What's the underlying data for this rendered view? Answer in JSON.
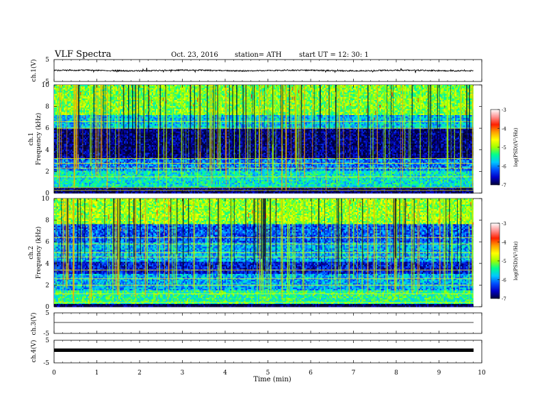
{
  "header": {
    "title": "VLF  Spectra",
    "date": "Oct. 23, 2016",
    "station": "station= ATH",
    "start_ut": "start  UT  =    12: 30: 1"
  },
  "colorbar": {
    "label": "log(PSD)(V²/Hz)",
    "ticks": [
      "-3",
      "-4",
      "-5",
      "-6",
      "-7"
    ],
    "colormap": [
      "#00003a",
      "#0000c8",
      "#0050ff",
      "#00c8ff",
      "#00ff90",
      "#a0ff00",
      "#ffff00",
      "#ffa000",
      "#ff2000",
      "#ff9090",
      "#ffffff"
    ]
  },
  "chart_data": [
    {
      "type": "line",
      "panel": "ch1-waveform",
      "ylabel": "ch.1(V)",
      "ylim": [
        -5,
        5
      ],
      "yticks": [
        "5",
        "-5"
      ],
      "x_range_min": [
        0,
        9.8
      ],
      "approx_level_v": 0.0,
      "approx_noise_v": 0.6
    },
    {
      "type": "heatmap",
      "panel": "ch1-spectrogram",
      "ylabel_line1": "ch.1",
      "ylabel_line2": "Frequency  (kHz)",
      "ylim": [
        0,
        10
      ],
      "yticks": [
        "0",
        "2",
        "4",
        "6",
        "8",
        "10"
      ],
      "x_range_min": [
        0,
        9.8
      ],
      "value_range": [
        -7,
        -3
      ],
      "bands_khz": [
        {
          "f0": 0.0,
          "f1": 0.6,
          "level": -6.9
        },
        {
          "f0": 0.6,
          "f1": 2.0,
          "level": -5.6
        },
        {
          "f0": 2.0,
          "f1": 3.2,
          "level": -6.1
        },
        {
          "f0": 3.2,
          "f1": 6.0,
          "level": -6.8
        },
        {
          "f0": 6.0,
          "f1": 7.2,
          "level": -5.8
        },
        {
          "f0": 7.2,
          "f1": 10.0,
          "level": -5.1
        }
      ],
      "lines_khz": [
        0.25,
        0.5,
        1.5,
        2.3,
        2.75,
        3.2,
        6.0,
        6.6
      ]
    },
    {
      "type": "heatmap",
      "panel": "ch2-spectrogram",
      "ylabel_line1": "ch.2",
      "ylabel_line2": "Frequency  (kHz)",
      "ylim": [
        0,
        10
      ],
      "yticks": [
        "0",
        "2",
        "4",
        "6",
        "8",
        "10"
      ],
      "x_range_min": [
        0,
        9.8
      ],
      "value_range": [
        -7,
        -3
      ],
      "bands_khz": [
        {
          "f0": 0.0,
          "f1": 0.2,
          "level": -7.0
        },
        {
          "f0": 0.2,
          "f1": 1.5,
          "level": -5.4
        },
        {
          "f0": 1.5,
          "f1": 3.0,
          "level": -5.9
        },
        {
          "f0": 3.0,
          "f1": 4.2,
          "level": -6.5
        },
        {
          "f0": 4.2,
          "f1": 6.0,
          "level": -5.9
        },
        {
          "f0": 6.0,
          "f1": 7.6,
          "level": -6.2
        },
        {
          "f0": 7.6,
          "f1": 10.0,
          "level": -5.0
        }
      ],
      "lines_khz": [
        0.4,
        1.2,
        2.0,
        2.6,
        3.4,
        4.6,
        5.0,
        5.8,
        6.4
      ]
    },
    {
      "type": "line",
      "panel": "ch3-waveform",
      "ylabel": "ch.3(V)",
      "ylim": [
        -5,
        5
      ],
      "yticks": [
        "5",
        "-5"
      ],
      "x_range_min": [
        0,
        9.8
      ],
      "approx_level_v": 0.0
    },
    {
      "type": "line",
      "panel": "ch4-waveform",
      "ylabel": "ch.4(V)",
      "ylim": [
        -5,
        5
      ],
      "yticks": [
        "5",
        "-5"
      ],
      "x_range_min": [
        0,
        9.8
      ],
      "approx_level_v": 0.0
    }
  ],
  "x_axis": {
    "label": "Time  (min)",
    "xlim": [
      0,
      10
    ],
    "ticks": [
      "0",
      "1",
      "2",
      "3",
      "4",
      "5",
      "6",
      "7",
      "8",
      "9",
      "10"
    ]
  }
}
